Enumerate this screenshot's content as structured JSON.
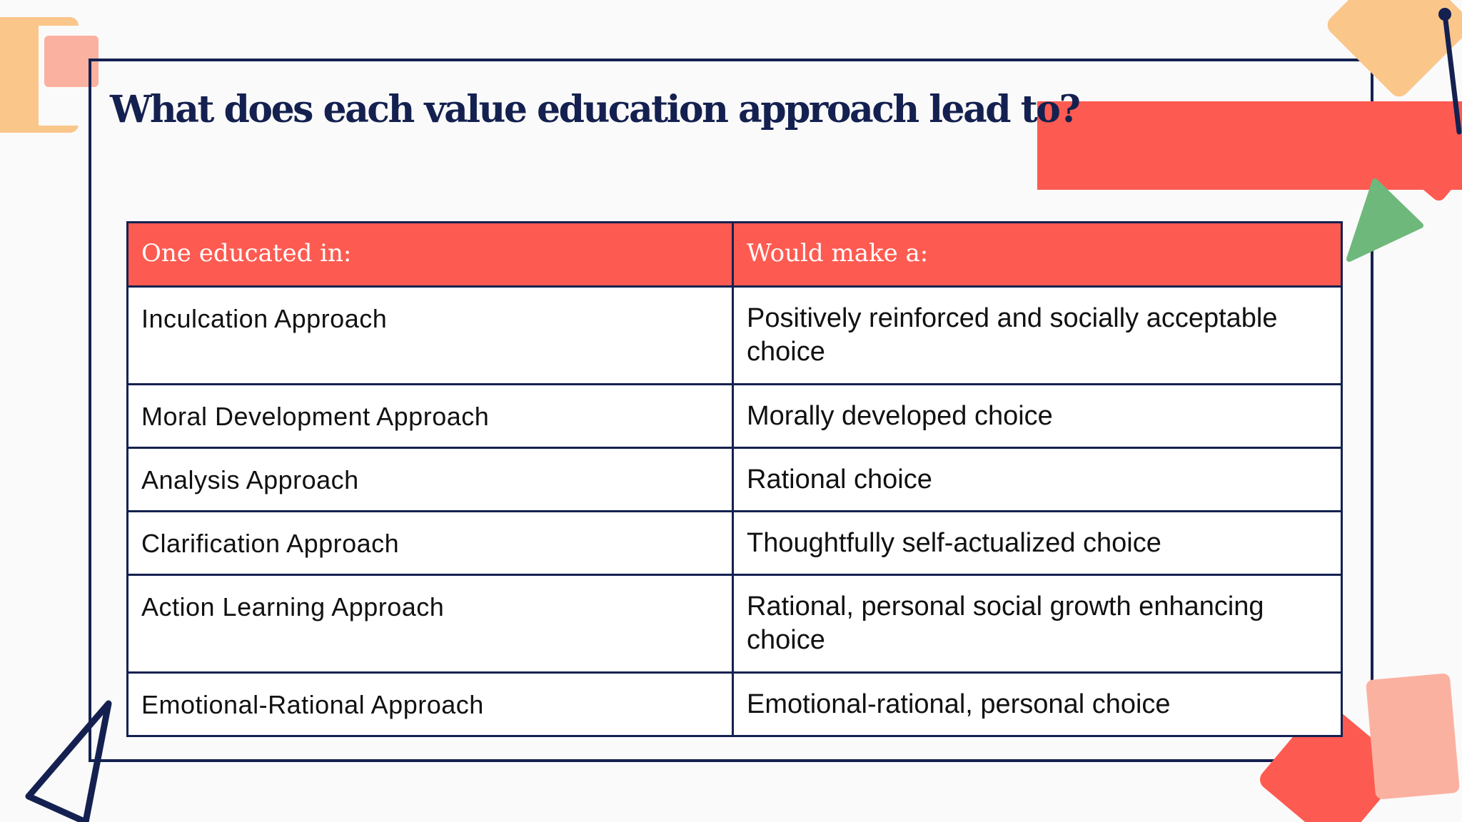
{
  "slide": {
    "title": "What does each value education approach lead to?"
  },
  "table": {
    "headers": [
      "One educated in:",
      "Would make a:"
    ],
    "rows": [
      {
        "approach": "Inculcation Approach",
        "outcome": "Positively reinforced and socially acceptable choice"
      },
      {
        "approach": "Moral Development Approach",
        "outcome": "Morally developed choice"
      },
      {
        "approach": "Analysis Approach",
        "outcome": "Rational choice"
      },
      {
        "approach": "Clarification Approach",
        "outcome": "Thoughtfully self-actualized choice"
      },
      {
        "approach": "Action Learning Approach",
        "outcome": "Rational, personal social growth enhancing choice"
      },
      {
        "approach": "Emotional-Rational Approach",
        "outcome": "Emotional-rational, personal choice"
      }
    ]
  },
  "colors": {
    "navy": "#142150",
    "coral": "#fd5b51",
    "peach": "#fac68a",
    "pink": "#fbb1a0",
    "green": "#6fb87c",
    "background": "#fafafa"
  }
}
